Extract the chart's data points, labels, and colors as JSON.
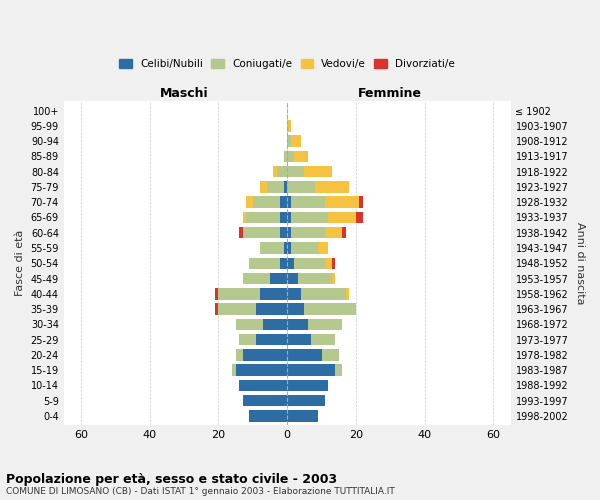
{
  "age_groups": [
    "0-4",
    "5-9",
    "10-14",
    "15-19",
    "20-24",
    "25-29",
    "30-34",
    "35-39",
    "40-44",
    "45-49",
    "50-54",
    "55-59",
    "60-64",
    "65-69",
    "70-74",
    "75-79",
    "80-84",
    "85-89",
    "90-94",
    "95-99",
    "100+"
  ],
  "birth_years": [
    "1998-2002",
    "1993-1997",
    "1988-1992",
    "1983-1987",
    "1978-1982",
    "1973-1977",
    "1968-1972",
    "1963-1967",
    "1958-1962",
    "1953-1957",
    "1948-1952",
    "1943-1947",
    "1938-1942",
    "1933-1937",
    "1928-1932",
    "1923-1927",
    "1918-1922",
    "1913-1917",
    "1908-1912",
    "1903-1907",
    "≤ 1902"
  ],
  "colors": {
    "celibi": "#2e6da4",
    "coniugati": "#b5c98e",
    "vedovi": "#f5c242",
    "divorziati": "#d9342b"
  },
  "males": {
    "celibi": [
      11,
      13,
      14,
      15,
      13,
      9,
      7,
      9,
      8,
      5,
      2,
      1,
      2,
      2,
      2,
      1,
      0,
      0,
      0,
      0,
      0
    ],
    "coniugati": [
      0,
      0,
      0,
      1,
      2,
      5,
      8,
      11,
      12,
      8,
      9,
      7,
      11,
      10,
      8,
      5,
      3,
      1,
      0,
      0,
      0
    ],
    "vedovi": [
      0,
      0,
      0,
      0,
      0,
      0,
      0,
      0,
      0,
      0,
      0,
      0,
      0,
      1,
      2,
      2,
      1,
      0,
      0,
      0,
      0
    ],
    "divorziati": [
      0,
      0,
      0,
      0,
      0,
      0,
      0,
      1,
      1,
      0,
      0,
      0,
      1,
      0,
      0,
      0,
      0,
      0,
      0,
      0,
      0
    ]
  },
  "females": {
    "nubili": [
      9,
      11,
      12,
      14,
      10,
      7,
      6,
      5,
      4,
      3,
      2,
      1,
      1,
      1,
      1,
      0,
      0,
      0,
      0,
      0,
      0
    ],
    "coniugate": [
      0,
      0,
      0,
      2,
      5,
      7,
      10,
      15,
      13,
      10,
      9,
      8,
      10,
      11,
      10,
      8,
      5,
      2,
      1,
      0,
      0
    ],
    "vedove": [
      0,
      0,
      0,
      0,
      0,
      0,
      0,
      0,
      1,
      1,
      2,
      3,
      5,
      8,
      10,
      10,
      8,
      4,
      3,
      1,
      0
    ],
    "divorziate": [
      0,
      0,
      0,
      0,
      0,
      0,
      0,
      0,
      0,
      0,
      1,
      0,
      1,
      2,
      1,
      0,
      0,
      0,
      0,
      0,
      0
    ]
  },
  "xlim": [
    -65,
    65
  ],
  "xticks": [
    -60,
    -40,
    -20,
    0,
    20,
    40,
    60
  ],
  "xtick_labels": [
    "60",
    "40",
    "20",
    "0",
    "20",
    "40",
    "60"
  ],
  "title": "Popolazione per età, sesso e stato civile - 2003",
  "subtitle": "COMUNE DI LIMOSANO (CB) - Dati ISTAT 1° gennaio 2003 - Elaborazione TUTTITALIA.IT",
  "ylabel_left": "Fasce di età",
  "ylabel_right": "Anni di nascita",
  "maschi_label": "Maschi",
  "femmine_label": "Femmine",
  "bg_color": "#f0f0f0",
  "plot_bg_color": "#ffffff",
  "grid_color": "#cccccc"
}
